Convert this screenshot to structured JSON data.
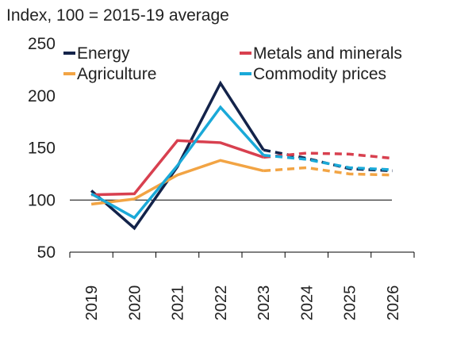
{
  "chart_data": {
    "type": "line",
    "ylabel": "Index, 100 = 2015-19 average",
    "ylim": [
      50,
      250
    ],
    "yticks": [
      50,
      100,
      150,
      200,
      250
    ],
    "reference_line": 100,
    "categories": [
      "2019",
      "2020",
      "2021",
      "2022",
      "2023",
      "2024",
      "2025",
      "2026"
    ],
    "actual_through": "2023",
    "forecast_style": "dashed",
    "legend_position": "top",
    "series": [
      {
        "name": "Energy",
        "color": "#13234a",
        "values": [
          109,
          73,
          132,
          212,
          148,
          140,
          130,
          128
        ]
      },
      {
        "name": "Metals and minerals",
        "color": "#d8404f",
        "values": [
          105,
          106,
          157,
          155,
          141,
          145,
          144,
          140
        ]
      },
      {
        "name": "Agriculture",
        "color": "#f2a444",
        "values": [
          96,
          101,
          124,
          138,
          128,
          131,
          125,
          124
        ]
      },
      {
        "name": "Commodity prices",
        "color": "#1aa9d8",
        "values": [
          106,
          83,
          133,
          189,
          143,
          139,
          131,
          129
        ]
      }
    ]
  }
}
